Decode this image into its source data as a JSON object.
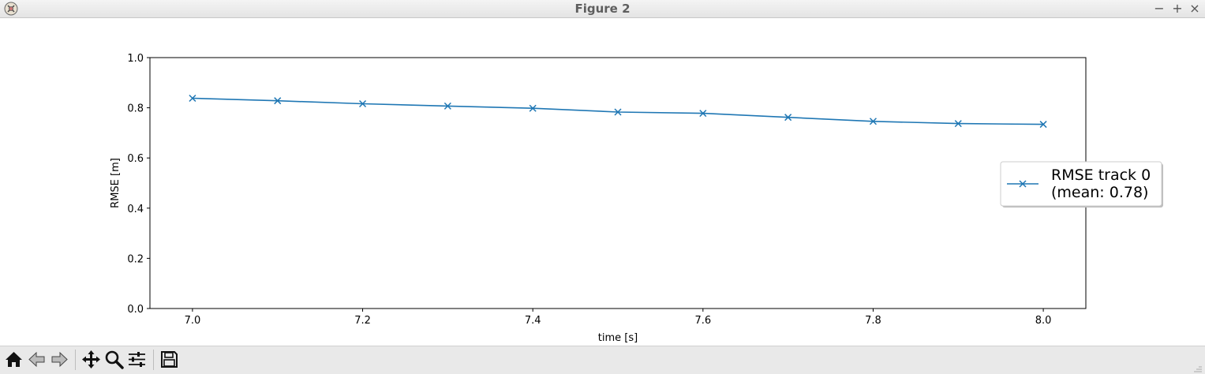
{
  "window": {
    "title": "Figure 2",
    "controls": {
      "minimize": "−",
      "maximize": "+",
      "close": "×"
    }
  },
  "toolbar": {
    "buttons": [
      {
        "icon": "home-icon",
        "tooltip": "Reset original view"
      },
      {
        "icon": "back-arrow-icon",
        "tooltip": "Back to previous view"
      },
      {
        "icon": "forward-arrow-icon",
        "tooltip": "Forward to next view"
      },
      {
        "icon": "pan-icon",
        "tooltip": "Pan axes"
      },
      {
        "icon": "zoom-icon",
        "tooltip": "Zoom to rectangle"
      },
      {
        "icon": "configure-subplots-icon",
        "tooltip": "Configure subplots"
      },
      {
        "icon": "save-icon",
        "tooltip": "Save the figure"
      }
    ]
  },
  "chart_data": {
    "type": "line",
    "title": "",
    "xlabel": "time [s]",
    "ylabel": "RMSE [m]",
    "xlim": [
      6.95,
      8.05
    ],
    "ylim": [
      0.0,
      1.0
    ],
    "xticks": [
      7.0,
      7.2,
      7.4,
      7.6,
      7.8,
      8.0
    ],
    "xtick_labels": [
      "7.0",
      "7.2",
      "7.4",
      "7.6",
      "7.8",
      "8.0"
    ],
    "yticks": [
      0.0,
      0.2,
      0.4,
      0.6,
      0.8,
      1.0
    ],
    "ytick_labels": [
      "0.0",
      "0.2",
      "0.4",
      "0.6",
      "0.8",
      "1.0"
    ],
    "grid": false,
    "legend_position": "right, outside axes",
    "marker": "x",
    "series": [
      {
        "name": "RMSE track 0\n(mean: 0.78)",
        "color": "#1f77b4",
        "x": [
          7.0,
          7.1,
          7.2,
          7.3,
          7.4,
          7.5,
          7.6,
          7.7,
          7.8,
          7.9,
          8.0
        ],
        "y": [
          0.838,
          0.828,
          0.816,
          0.807,
          0.798,
          0.783,
          0.778,
          0.762,
          0.746,
          0.737,
          0.734
        ]
      }
    ]
  }
}
